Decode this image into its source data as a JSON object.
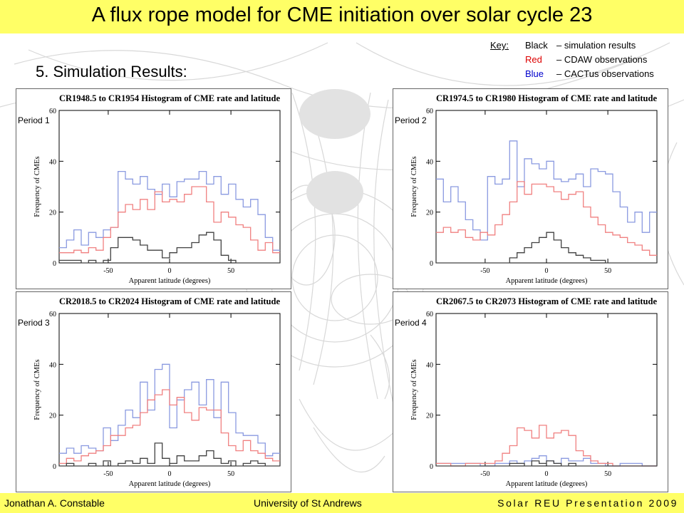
{
  "header": {
    "title": "A flux rope model for CME initiation over solar cycle 23"
  },
  "section": {
    "title": "5. Simulation Results:"
  },
  "key": {
    "label": "Key:",
    "entries": [
      {
        "color_name": "Black",
        "desc": "– simulation results",
        "color": "#000000"
      },
      {
        "color_name": "Red",
        "desc": "– CDAW observations",
        "color": "#dd0000"
      },
      {
        "color_name": "Blue",
        "desc": "– CACTus observations",
        "color": "#0000cc"
      }
    ]
  },
  "footer": {
    "author": "Jonathan A. Constable",
    "university": "University of St Andrews",
    "presentation": "Solar REU Presentation 2009"
  },
  "colors": {
    "bar": "#ffff66",
    "simulation": "#404040",
    "cdaw": "#f08080",
    "cactus": "#8a9ae0"
  },
  "chart_data": [
    {
      "type": "line",
      "period_label": "Period 1",
      "title": "CR1948.5 to CR1954 Histogram of CME rate and latitude",
      "xlabel": "Apparent latitude (degrees)",
      "ylabel": "Frequency of CMEs",
      "xlim": [
        -90,
        90
      ],
      "ylim": [
        0,
        60
      ],
      "xticks": [
        -50,
        0,
        50
      ],
      "yticks": [
        0,
        20,
        40,
        60
      ],
      "bin_edges": [
        -90,
        -84,
        -78,
        -72,
        -66,
        -60,
        -54,
        -48,
        -42,
        -36,
        -30,
        -24,
        -18,
        -12,
        -6,
        0,
        6,
        12,
        18,
        24,
        30,
        36,
        42,
        48,
        54,
        60,
        66,
        72,
        78,
        84,
        90
      ],
      "series": [
        {
          "name": "Black",
          "color": "#404040",
          "values": [
            1,
            1,
            1,
            0,
            1,
            0,
            1,
            6,
            10,
            10,
            9,
            7,
            5,
            5,
            2,
            4,
            6,
            6,
            8,
            11,
            12,
            9,
            3,
            1,
            0,
            0,
            0,
            0,
            0,
            0
          ]
        },
        {
          "name": "Red",
          "color": "#f08080",
          "values": [
            4,
            4,
            5,
            4,
            6,
            5,
            10,
            14,
            20,
            23,
            21,
            25,
            21,
            28,
            24,
            25,
            24,
            27,
            30,
            30,
            24,
            16,
            20,
            18,
            15,
            14,
            9,
            5,
            8,
            4
          ]
        },
        {
          "name": "Blue",
          "color": "#8a9ae0",
          "values": [
            6,
            9,
            13,
            7,
            12,
            10,
            13,
            14,
            36,
            33,
            31,
            34,
            29,
            27,
            31,
            26,
            32,
            33,
            33,
            36,
            31,
            34,
            27,
            31,
            25,
            22,
            25,
            19,
            10,
            5
          ]
        }
      ]
    },
    {
      "type": "line",
      "period_label": "Period 2",
      "title": "CR1974.5 to CR1980 Histogram of CME rate and latitude",
      "xlabel": "Apparent latitude (degrees)",
      "ylabel": "Frequency of CMEs",
      "xlim": [
        -90,
        90
      ],
      "ylim": [
        0,
        60
      ],
      "xticks": [
        -50,
        0,
        50
      ],
      "yticks": [
        0,
        20,
        40,
        60
      ],
      "bin_edges": [
        -90,
        -84,
        -78,
        -72,
        -66,
        -60,
        -54,
        -48,
        -42,
        -36,
        -30,
        -24,
        -18,
        -12,
        -6,
        0,
        6,
        12,
        18,
        24,
        30,
        36,
        42,
        48,
        54,
        60,
        66,
        72,
        78,
        84,
        90
      ],
      "series": [
        {
          "name": "Black",
          "color": "#404040",
          "values": [
            0,
            0,
            0,
            0,
            0,
            0,
            0,
            0,
            0,
            0,
            2,
            4,
            6,
            8,
            10,
            12,
            9,
            6,
            4,
            3,
            2,
            1,
            1,
            0,
            0,
            0,
            0,
            0,
            0,
            0
          ]
        },
        {
          "name": "Red",
          "color": "#f08080",
          "values": [
            12,
            14,
            12,
            13,
            10,
            9,
            12,
            11,
            15,
            19,
            24,
            32,
            27,
            31,
            31,
            30,
            28,
            25,
            27,
            28,
            22,
            18,
            15,
            12,
            11,
            10,
            8,
            7,
            5,
            3
          ]
        },
        {
          "name": "Blue",
          "color": "#8a9ae0",
          "values": [
            33,
            24,
            30,
            24,
            17,
            13,
            9,
            34,
            31,
            33,
            48,
            30,
            41,
            39,
            37,
            40,
            33,
            32,
            33,
            35,
            30,
            37,
            36,
            35,
            28,
            22,
            16,
            20,
            12,
            20
          ]
        }
      ]
    },
    {
      "type": "line",
      "period_label": "Period 3",
      "title": "CR2018.5 to CR2024 Histogram of CME rate and latitude",
      "xlabel": "Apparent latitude (degrees)",
      "ylabel": "Frequency of CMEs",
      "xlim": [
        -90,
        90
      ],
      "ylim": [
        0,
        60
      ],
      "xticks": [
        -50,
        0,
        50
      ],
      "yticks": [
        0,
        20,
        40,
        60
      ],
      "bin_edges": [
        -90,
        -84,
        -78,
        -72,
        -66,
        -60,
        -54,
        -48,
        -42,
        -36,
        -30,
        -24,
        -18,
        -12,
        -6,
        0,
        6,
        12,
        18,
        24,
        30,
        36,
        42,
        48,
        54,
        60,
        66,
        72,
        78,
        84,
        90
      ],
      "series": [
        {
          "name": "Black",
          "color": "#404040",
          "values": [
            0,
            1,
            0,
            0,
            1,
            0,
            2,
            0,
            1,
            2,
            1,
            3,
            1,
            9,
            3,
            1,
            4,
            2,
            2,
            4,
            6,
            3,
            1,
            2,
            0,
            1,
            2,
            1,
            0,
            0
          ]
        },
        {
          "name": "Red",
          "color": "#f08080",
          "values": [
            1,
            3,
            2,
            4,
            5,
            6,
            8,
            12,
            12,
            15,
            16,
            21,
            26,
            28,
            30,
            24,
            27,
            21,
            18,
            23,
            22,
            22,
            13,
            8,
            6,
            10,
            6,
            5,
            3,
            2
          ]
        },
        {
          "name": "Blue",
          "color": "#8a9ae0",
          "values": [
            5,
            7,
            5,
            8,
            7,
            6,
            15,
            10,
            16,
            22,
            19,
            33,
            22,
            38,
            40,
            15,
            26,
            30,
            33,
            24,
            34,
            19,
            33,
            21,
            13,
            12,
            12,
            9,
            4,
            5
          ]
        }
      ]
    },
    {
      "type": "line",
      "period_label": "Period 4",
      "title": "CR2067.5 to CR2073 Histogram of CME rate and latitude",
      "xlabel": "Apparent latitude (degrees)",
      "ylabel": "Frequency of CMEs",
      "xlim": [
        -90,
        90
      ],
      "ylim": [
        0,
        60
      ],
      "xticks": [
        -50,
        0,
        50
      ],
      "yticks": [
        0,
        20,
        40,
        60
      ],
      "bin_edges": [
        -90,
        -84,
        -78,
        -72,
        -66,
        -60,
        -54,
        -48,
        -42,
        -36,
        -30,
        -24,
        -18,
        -12,
        -6,
        0,
        6,
        12,
        18,
        24,
        30,
        36,
        42,
        48,
        54,
        60,
        66,
        72,
        78,
        84,
        90
      ],
      "series": [
        {
          "name": "Black",
          "color": "#404040",
          "values": [
            0,
            0,
            0,
            0,
            0,
            0,
            0,
            0,
            0,
            0,
            1,
            1,
            0,
            2,
            1,
            2,
            1,
            0,
            1,
            0,
            0,
            0,
            0,
            0,
            0,
            0,
            0,
            0,
            0,
            0
          ]
        },
        {
          "name": "Red",
          "color": "#f08080",
          "values": [
            1,
            1,
            0,
            0,
            1,
            1,
            1,
            1,
            2,
            5,
            8,
            15,
            14,
            11,
            16,
            11,
            13,
            14,
            12,
            6,
            4,
            2,
            1,
            1,
            0,
            0,
            0,
            0,
            0,
            0
          ]
        },
        {
          "name": "Blue",
          "color": "#8a9ae0",
          "values": [
            1,
            1,
            1,
            1,
            1,
            1,
            0,
            0,
            1,
            1,
            2,
            1,
            2,
            3,
            4,
            2,
            1,
            3,
            2,
            2,
            3,
            1,
            1,
            0,
            0,
            1,
            1,
            1,
            0,
            0
          ]
        }
      ]
    }
  ]
}
